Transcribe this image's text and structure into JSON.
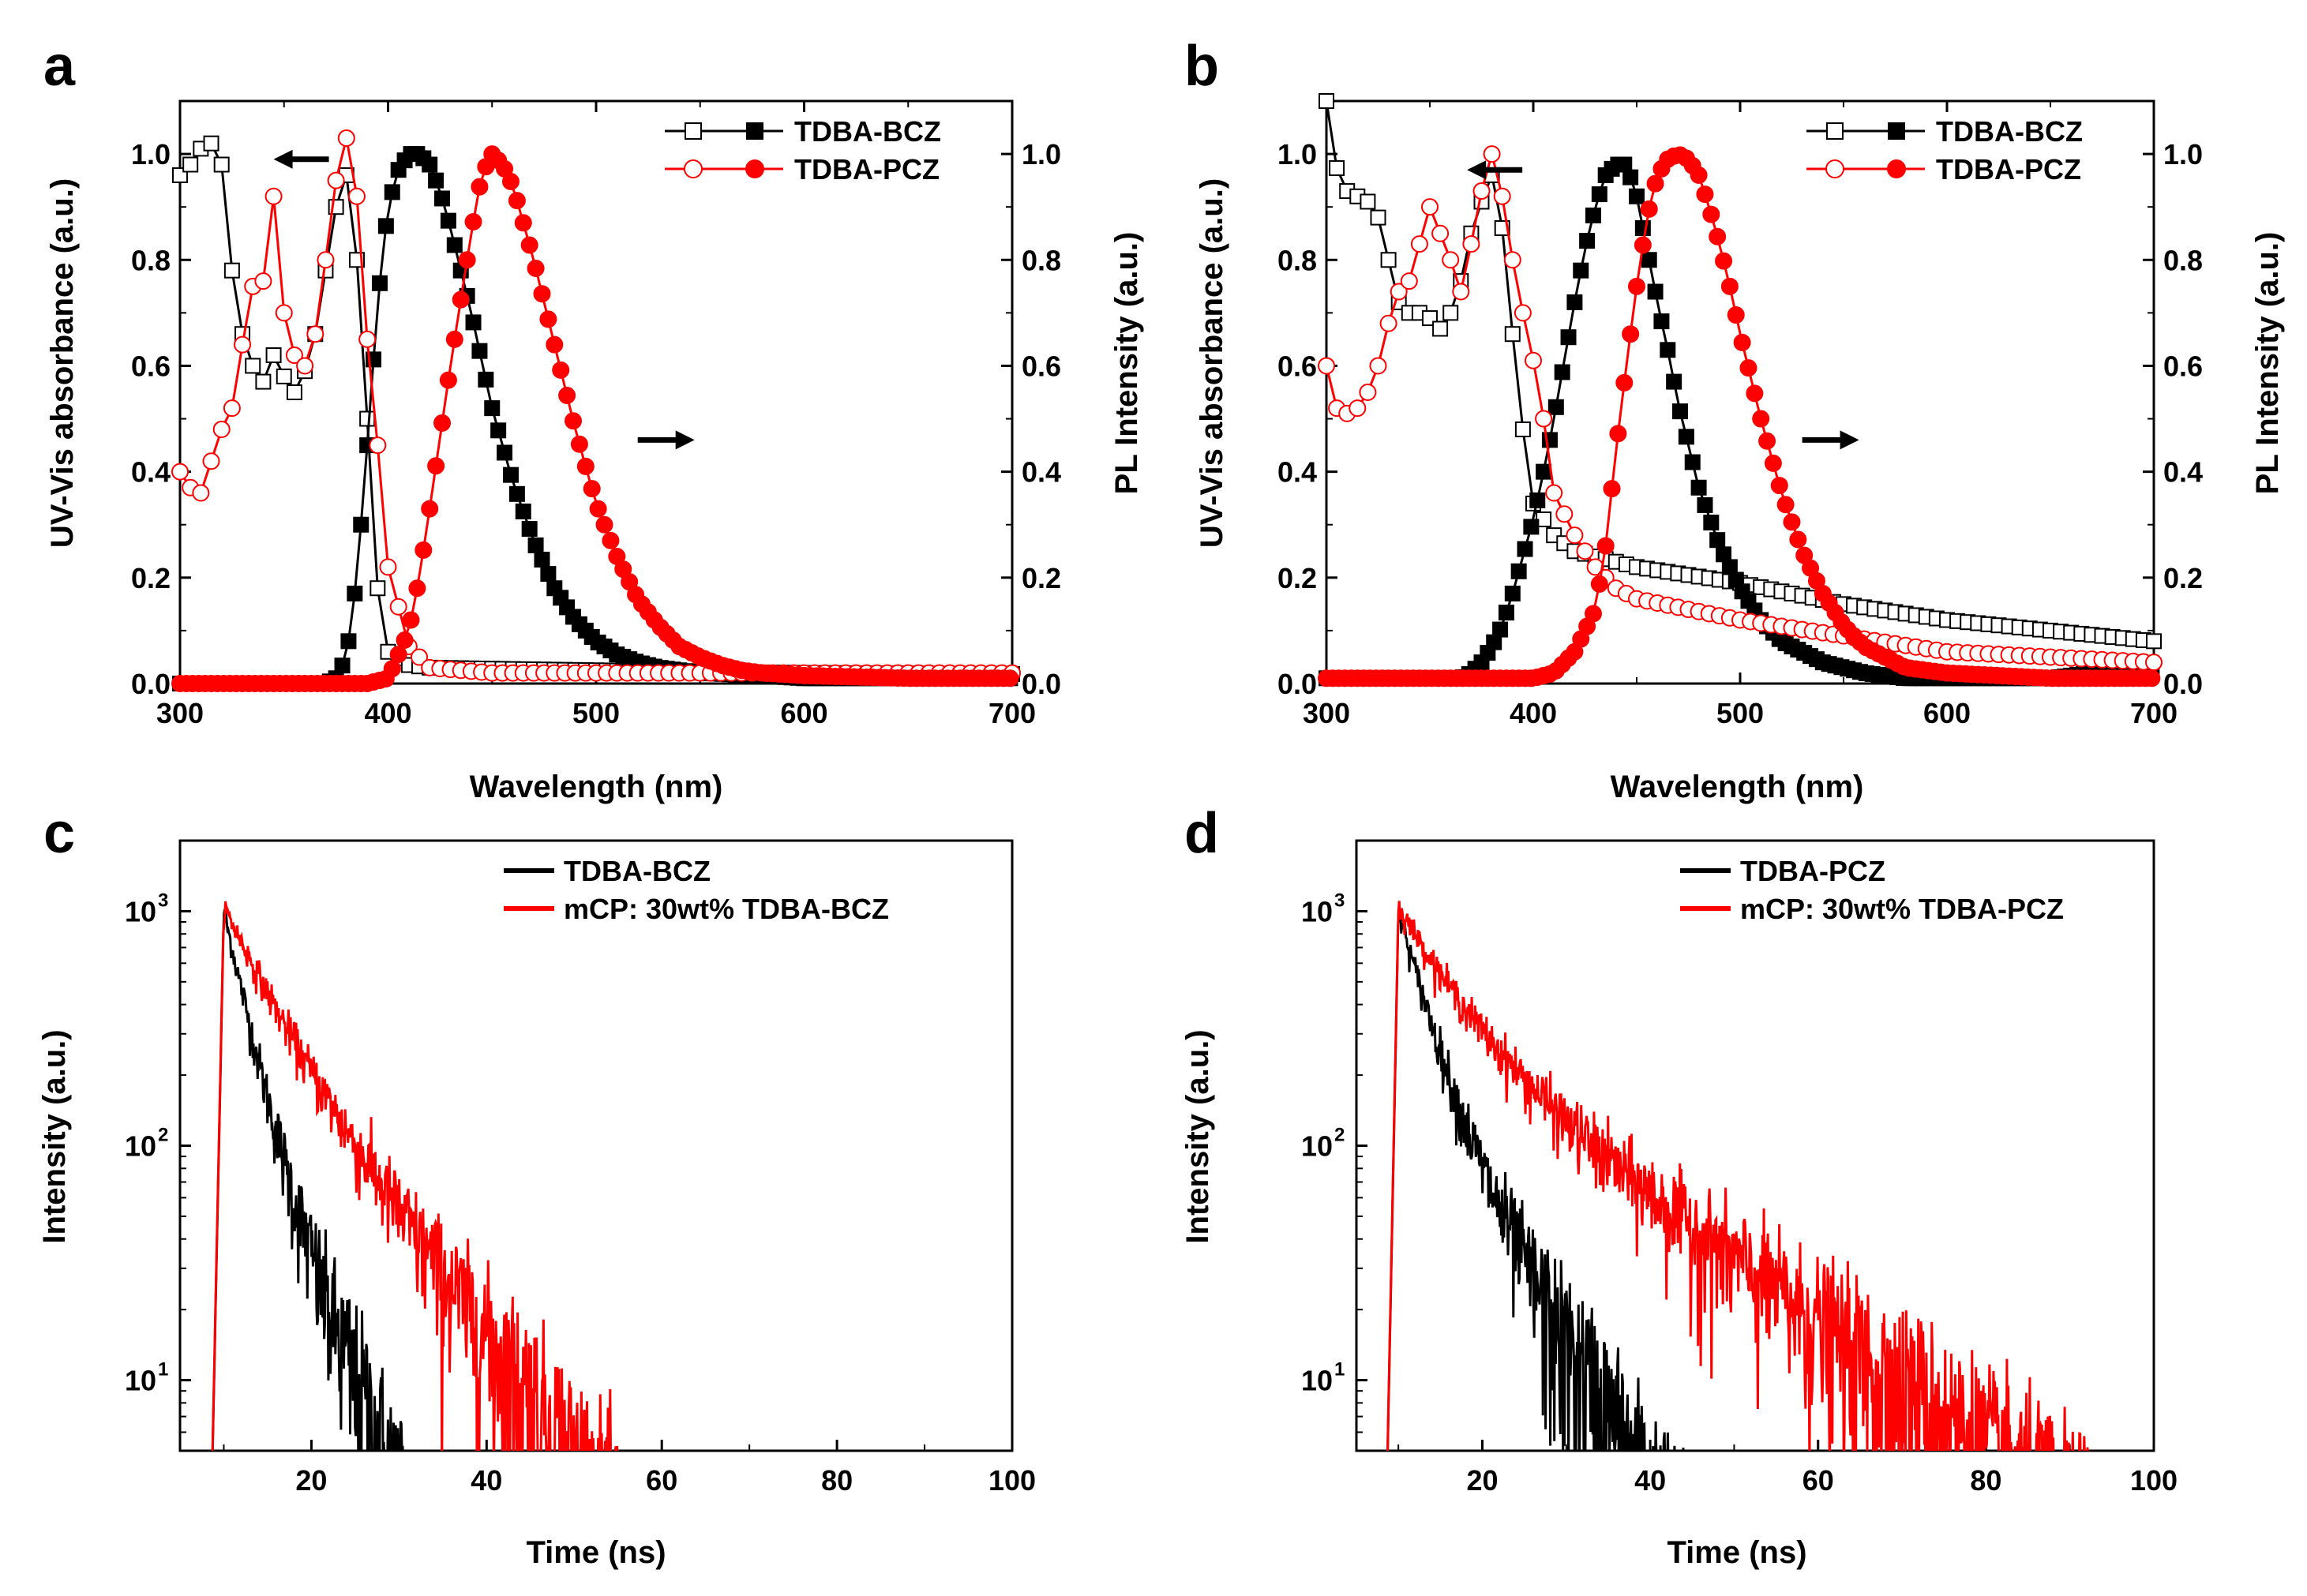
{
  "figure": {
    "panels": [
      "a",
      "b",
      "c",
      "d"
    ]
  },
  "colors": {
    "black": "#000000",
    "red": "#ff0000"
  },
  "chart_data": [
    {
      "panel": "a",
      "type": "line",
      "xlabel": "Wavelength (nm)",
      "ylabel": "UV-Vis absorbance (a.u.)",
      "y2label": "PL Intensity (a.u.)",
      "xlim": [
        300,
        700
      ],
      "ylim": [
        0,
        1.1
      ],
      "y2lim": [
        0,
        1.1
      ],
      "xticks": [
        "300",
        "400",
        "500",
        "600",
        "700"
      ],
      "yticks": [
        "0.0",
        "0.2",
        "0.4",
        "0.6",
        "0.8",
        "1.0"
      ],
      "y2ticks": [
        "0.0",
        "0.2",
        "0.4",
        "0.6",
        "0.8",
        "1.0"
      ],
      "legend": [
        "TDBA-BCZ",
        "TDBA-PCZ"
      ],
      "arrows": {
        "left_at": [
          345,
          0.99
        ],
        "right_at": [
          520,
          0.46
        ]
      },
      "series": [
        {
          "name": "TDBA-BCZ",
          "kind": "absorbance",
          "color": "#000000",
          "filled": false,
          "x": [
            300,
            305,
            310,
            315,
            320,
            325,
            330,
            335,
            340,
            345,
            350,
            355,
            360,
            365,
            370,
            375,
            380,
            385,
            390,
            395,
            400,
            410,
            420,
            450,
            500,
            600,
            700
          ],
          "y": [
            0.96,
            0.98,
            1.01,
            1.02,
            0.98,
            0.78,
            0.66,
            0.6,
            0.57,
            0.62,
            0.58,
            0.55,
            0.59,
            0.66,
            0.78,
            0.9,
            0.96,
            0.8,
            0.5,
            0.18,
            0.06,
            0.035,
            0.03,
            0.028,
            0.025,
            0.02,
            0.018
          ]
        },
        {
          "name": "TDBA-BCZ",
          "kind": "PL",
          "color": "#000000",
          "filled": true,
          "x": [
            300,
            350,
            370,
            375,
            380,
            385,
            390,
            395,
            400,
            405,
            410,
            415,
            420,
            425,
            430,
            440,
            450,
            460,
            470,
            480,
            490,
            500,
            510,
            520,
            530,
            550,
            580,
            600,
            650,
            700
          ],
          "y": [
            0.0,
            0.0,
            0.0,
            0.01,
            0.05,
            0.2,
            0.45,
            0.72,
            0.9,
            0.97,
            1.0,
            1.0,
            0.98,
            0.93,
            0.86,
            0.7,
            0.52,
            0.38,
            0.27,
            0.18,
            0.12,
            0.08,
            0.055,
            0.04,
            0.03,
            0.02,
            0.015,
            0.01,
            0.01,
            0.01
          ]
        },
        {
          "name": "TDBA-PCZ",
          "kind": "absorbance",
          "color": "#ff0000",
          "filled": false,
          "x": [
            300,
            305,
            310,
            315,
            320,
            325,
            330,
            335,
            340,
            345,
            350,
            355,
            360,
            365,
            370,
            375,
            380,
            385,
            390,
            395,
            400,
            410,
            420,
            450,
            500,
            600,
            700
          ],
          "y": [
            0.4,
            0.37,
            0.36,
            0.42,
            0.48,
            0.52,
            0.64,
            0.75,
            0.76,
            0.92,
            0.7,
            0.62,
            0.6,
            0.66,
            0.8,
            0.95,
            1.03,
            0.92,
            0.65,
            0.45,
            0.22,
            0.07,
            0.03,
            0.02,
            0.02,
            0.02,
            0.02
          ]
        },
        {
          "name": "TDBA-PCZ",
          "kind": "PL",
          "color": "#ff0000",
          "filled": true,
          "x": [
            300,
            380,
            390,
            400,
            410,
            415,
            420,
            430,
            440,
            445,
            450,
            455,
            460,
            470,
            480,
            490,
            500,
            510,
            520,
            530,
            540,
            550,
            560,
            570,
            580,
            600,
            650,
            700
          ],
          "y": [
            0.0,
            0.0,
            0.0,
            0.01,
            0.1,
            0.2,
            0.33,
            0.6,
            0.85,
            0.96,
            1.0,
            0.98,
            0.94,
            0.8,
            0.64,
            0.48,
            0.34,
            0.24,
            0.16,
            0.11,
            0.07,
            0.05,
            0.035,
            0.025,
            0.02,
            0.015,
            0.01,
            0.01
          ]
        }
      ]
    },
    {
      "panel": "b",
      "type": "line",
      "xlabel": "Wavelength (nm)",
      "ylabel": "UV-Vis absorbance (a.u.)",
      "y2label": "PL Intensity (a.u.)",
      "xlim": [
        300,
        700
      ],
      "ylim": [
        0,
        1.1
      ],
      "y2lim": [
        0,
        1.1
      ],
      "xticks": [
        "300",
        "400",
        "500",
        "600",
        "700"
      ],
      "yticks": [
        "0.0",
        "0.2",
        "0.4",
        "0.6",
        "0.8",
        "1.0"
      ],
      "y2ticks": [
        "0.0",
        "0.2",
        "0.4",
        "0.6",
        "0.8",
        "1.0"
      ],
      "legend": [
        "TDBA-BCZ",
        "TDBA-PCZ"
      ],
      "arrows": {
        "left_at": [
          368,
          0.97
        ],
        "right_at": [
          530,
          0.46
        ]
      },
      "series": [
        {
          "name": "TDBA-BCZ",
          "kind": "absorbance",
          "color": "#000000",
          "filled": false,
          "x": [
            300,
            303,
            306,
            310,
            315,
            320,
            325,
            330,
            335,
            340,
            345,
            350,
            355,
            360,
            365,
            370,
            375,
            380,
            385,
            390,
            395,
            400,
            410,
            420,
            450,
            500,
            550,
            600,
            650,
            700
          ],
          "y": [
            1.1,
            1.02,
            0.95,
            0.93,
            0.92,
            0.91,
            0.88,
            0.8,
            0.72,
            0.7,
            0.7,
            0.69,
            0.67,
            0.7,
            0.76,
            0.85,
            0.91,
            0.96,
            0.86,
            0.66,
            0.48,
            0.34,
            0.28,
            0.25,
            0.22,
            0.19,
            0.15,
            0.12,
            0.1,
            0.08
          ]
        },
        {
          "name": "TDBA-BCZ",
          "kind": "PL",
          "color": "#000000",
          "filled": true,
          "x": [
            300,
            360,
            365,
            370,
            375,
            380,
            385,
            390,
            395,
            400,
            405,
            410,
            415,
            420,
            425,
            430,
            435,
            440,
            445,
            450,
            455,
            460,
            465,
            470,
            480,
            490,
            500,
            510,
            520,
            540,
            560,
            580,
            600,
            650,
            690,
            700
          ],
          "y": [
            0.01,
            0.01,
            0.01,
            0.02,
            0.04,
            0.07,
            0.11,
            0.17,
            0.24,
            0.31,
            0.4,
            0.5,
            0.61,
            0.72,
            0.82,
            0.9,
            0.96,
            0.98,
            0.98,
            0.92,
            0.82,
            0.72,
            0.63,
            0.53,
            0.37,
            0.26,
            0.18,
            0.12,
            0.08,
            0.04,
            0.02,
            0.01,
            0.01,
            0.01,
            0.03,
            0.02
          ]
        },
        {
          "name": "TDBA-PCZ",
          "kind": "absorbance",
          "color": "#ff0000",
          "filled": false,
          "x": [
            300,
            305,
            310,
            315,
            320,
            325,
            330,
            335,
            340,
            345,
            350,
            355,
            360,
            365,
            370,
            375,
            380,
            385,
            390,
            395,
            400,
            405,
            410,
            420,
            430,
            440,
            450,
            500,
            550,
            600,
            650,
            700
          ],
          "y": [
            0.6,
            0.52,
            0.51,
            0.52,
            0.55,
            0.6,
            0.68,
            0.74,
            0.76,
            0.83,
            0.9,
            0.85,
            0.8,
            0.74,
            0.83,
            0.93,
            1.0,
            0.92,
            0.8,
            0.7,
            0.61,
            0.5,
            0.36,
            0.28,
            0.22,
            0.18,
            0.16,
            0.12,
            0.09,
            0.06,
            0.05,
            0.04
          ]
        },
        {
          "name": "TDBA-PCZ",
          "kind": "PL",
          "color": "#ff0000",
          "filled": true,
          "x": [
            300,
            390,
            400,
            410,
            420,
            430,
            435,
            440,
            445,
            450,
            455,
            460,
            465,
            470,
            475,
            480,
            485,
            490,
            495,
            500,
            510,
            520,
            530,
            540,
            550,
            560,
            570,
            580,
            600,
            650,
            700
          ],
          "y": [
            0.01,
            0.01,
            0.01,
            0.02,
            0.06,
            0.14,
            0.26,
            0.44,
            0.6,
            0.75,
            0.88,
            0.96,
            0.99,
            1.0,
            0.99,
            0.96,
            0.9,
            0.83,
            0.75,
            0.66,
            0.5,
            0.36,
            0.25,
            0.17,
            0.11,
            0.07,
            0.05,
            0.03,
            0.02,
            0.01,
            0.01
          ]
        }
      ]
    },
    {
      "panel": "c",
      "type": "line",
      "yscale": "log",
      "xlabel": "Time (ns)",
      "ylabel": "Intensity (a.u.)",
      "xlim": [
        5,
        100
      ],
      "ylim": [
        5,
        2000
      ],
      "xticks": [
        20,
        40,
        60,
        80,
        100
      ],
      "yticks": [
        10,
        100,
        1000
      ],
      "ytick_exponents": [
        "1",
        "2",
        "3"
      ],
      "legend": [
        "TDBA-BCZ",
        "mCP: 30wt% TDBA-BCZ"
      ],
      "series": [
        {
          "name": "TDBA-BCZ",
          "color": "#000000",
          "peak_time": 10,
          "peak": 1000,
          "tau1": 2.4,
          "tau2": 5.5,
          "amp2": 0.13,
          "end_time": 52
        },
        {
          "name": "mCP: 30wt% TDBA-BCZ",
          "color": "#ff0000",
          "peak_time": 10,
          "peak": 1050,
          "tau1": 4.5,
          "tau2": 9.0,
          "amp2": 0.4,
          "end_time": 76
        }
      ]
    },
    {
      "panel": "d",
      "type": "line",
      "yscale": "log",
      "xlabel": "Time (ns)",
      "ylabel": "Intensity (a.u.)",
      "xlim": [
        5,
        100
      ],
      "ylim": [
        5,
        2000
      ],
      "xticks": [
        20,
        40,
        60,
        80,
        100
      ],
      "yticks": [
        10,
        100,
        1000
      ],
      "ytick_exponents": [
        "1",
        "2",
        "3"
      ],
      "legend": [
        "TDBA-PCZ",
        "mCP: 30wt% TDBA-PCZ"
      ],
      "series": [
        {
          "name": "TDBA-PCZ",
          "color": "#000000",
          "peak_time": 10,
          "peak": 1000,
          "tau1": 3.0,
          "tau2": 7.5,
          "amp2": 0.2,
          "end_time": 70
        },
        {
          "name": "mCP: 30wt% TDBA-PCZ",
          "color": "#ff0000",
          "peak_time": 10,
          "peak": 1050,
          "tau1": 5.5,
          "tau2": 16.5,
          "amp2": 0.35,
          "end_time": 100
        }
      ]
    }
  ]
}
